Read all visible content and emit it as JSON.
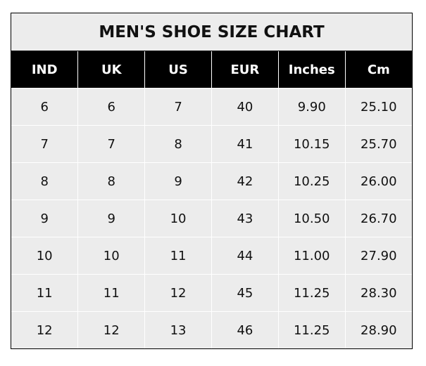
{
  "chart_data": {
    "type": "table",
    "title": "MEN'S SHOE SIZE CHART",
    "columns": [
      "IND",
      "UK",
      "US",
      "EUR",
      "Inches",
      "Cm"
    ],
    "rows": [
      [
        "6",
        "6",
        "7",
        "40",
        "9.90",
        "25.10"
      ],
      [
        "7",
        "7",
        "8",
        "41",
        "10.15",
        "25.70"
      ],
      [
        "8",
        "8",
        "9",
        "42",
        "10.25",
        "26.00"
      ],
      [
        "9",
        "9",
        "10",
        "43",
        "10.50",
        "26.70"
      ],
      [
        "10",
        "10",
        "11",
        "44",
        "11.00",
        "27.90"
      ],
      [
        "11",
        "11",
        "12",
        "45",
        "11.25",
        "28.30"
      ],
      [
        "12",
        "12",
        "13",
        "46",
        "11.25",
        "28.90"
      ]
    ]
  },
  "colors": {
    "header_bg": "#000000",
    "header_text": "#ffffff",
    "cell_bg": "#ececec",
    "grid": "#ffffff"
  }
}
